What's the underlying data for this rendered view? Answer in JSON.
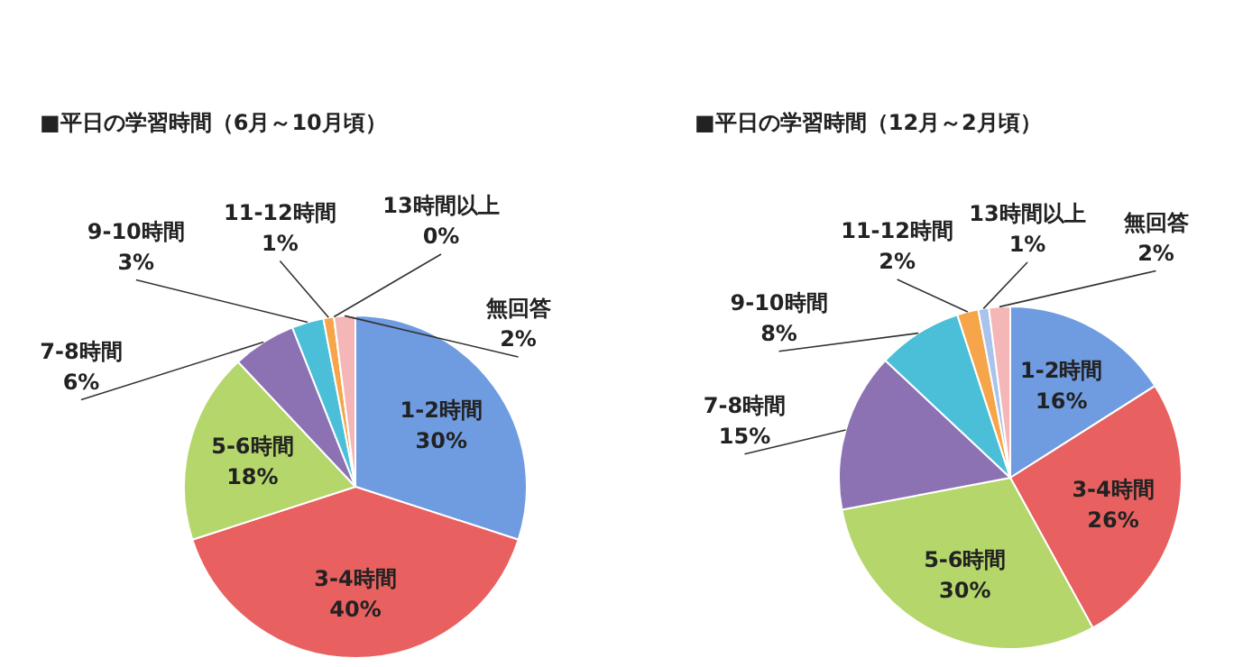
{
  "chart_data": [
    {
      "type": "pie",
      "title": "■平日の学習時間（6月～10月頃）",
      "categories": [
        "1-2時間",
        "3-4時間",
        "5-6時間",
        "7-8時間",
        "9-10時間",
        "11-12時間",
        "13時間以上",
        "無回答"
      ],
      "values": [
        30,
        40,
        18,
        6,
        3,
        1,
        0,
        2
      ],
      "value_labels": [
        "30%",
        "40%",
        "18%",
        "6%",
        "3%",
        "1%",
        "0%",
        "2%"
      ],
      "colors": [
        "#6f9be0",
        "#e8605f",
        "#b4d66a",
        "#8d72b3",
        "#4bbfd8",
        "#f6a54a",
        "#a9c3ec",
        "#f4b6b6"
      ]
    },
    {
      "type": "pie",
      "title": "■平日の学習時間（12月～2月頃）",
      "categories": [
        "1-2時間",
        "3-4時間",
        "5-6時間",
        "7-8時間",
        "9-10時間",
        "11-12時間",
        "13時間以上",
        "無回答"
      ],
      "values": [
        16,
        26,
        30,
        15,
        8,
        2,
        1,
        2
      ],
      "value_labels": [
        "16%",
        "26%",
        "30%",
        "15%",
        "8%",
        "2%",
        "1%",
        "2%"
      ],
      "colors": [
        "#6f9be0",
        "#e8605f",
        "#b4d66a",
        "#8d72b3",
        "#4bbfd8",
        "#f6a54a",
        "#a9c3ec",
        "#f4b6b6"
      ]
    }
  ]
}
